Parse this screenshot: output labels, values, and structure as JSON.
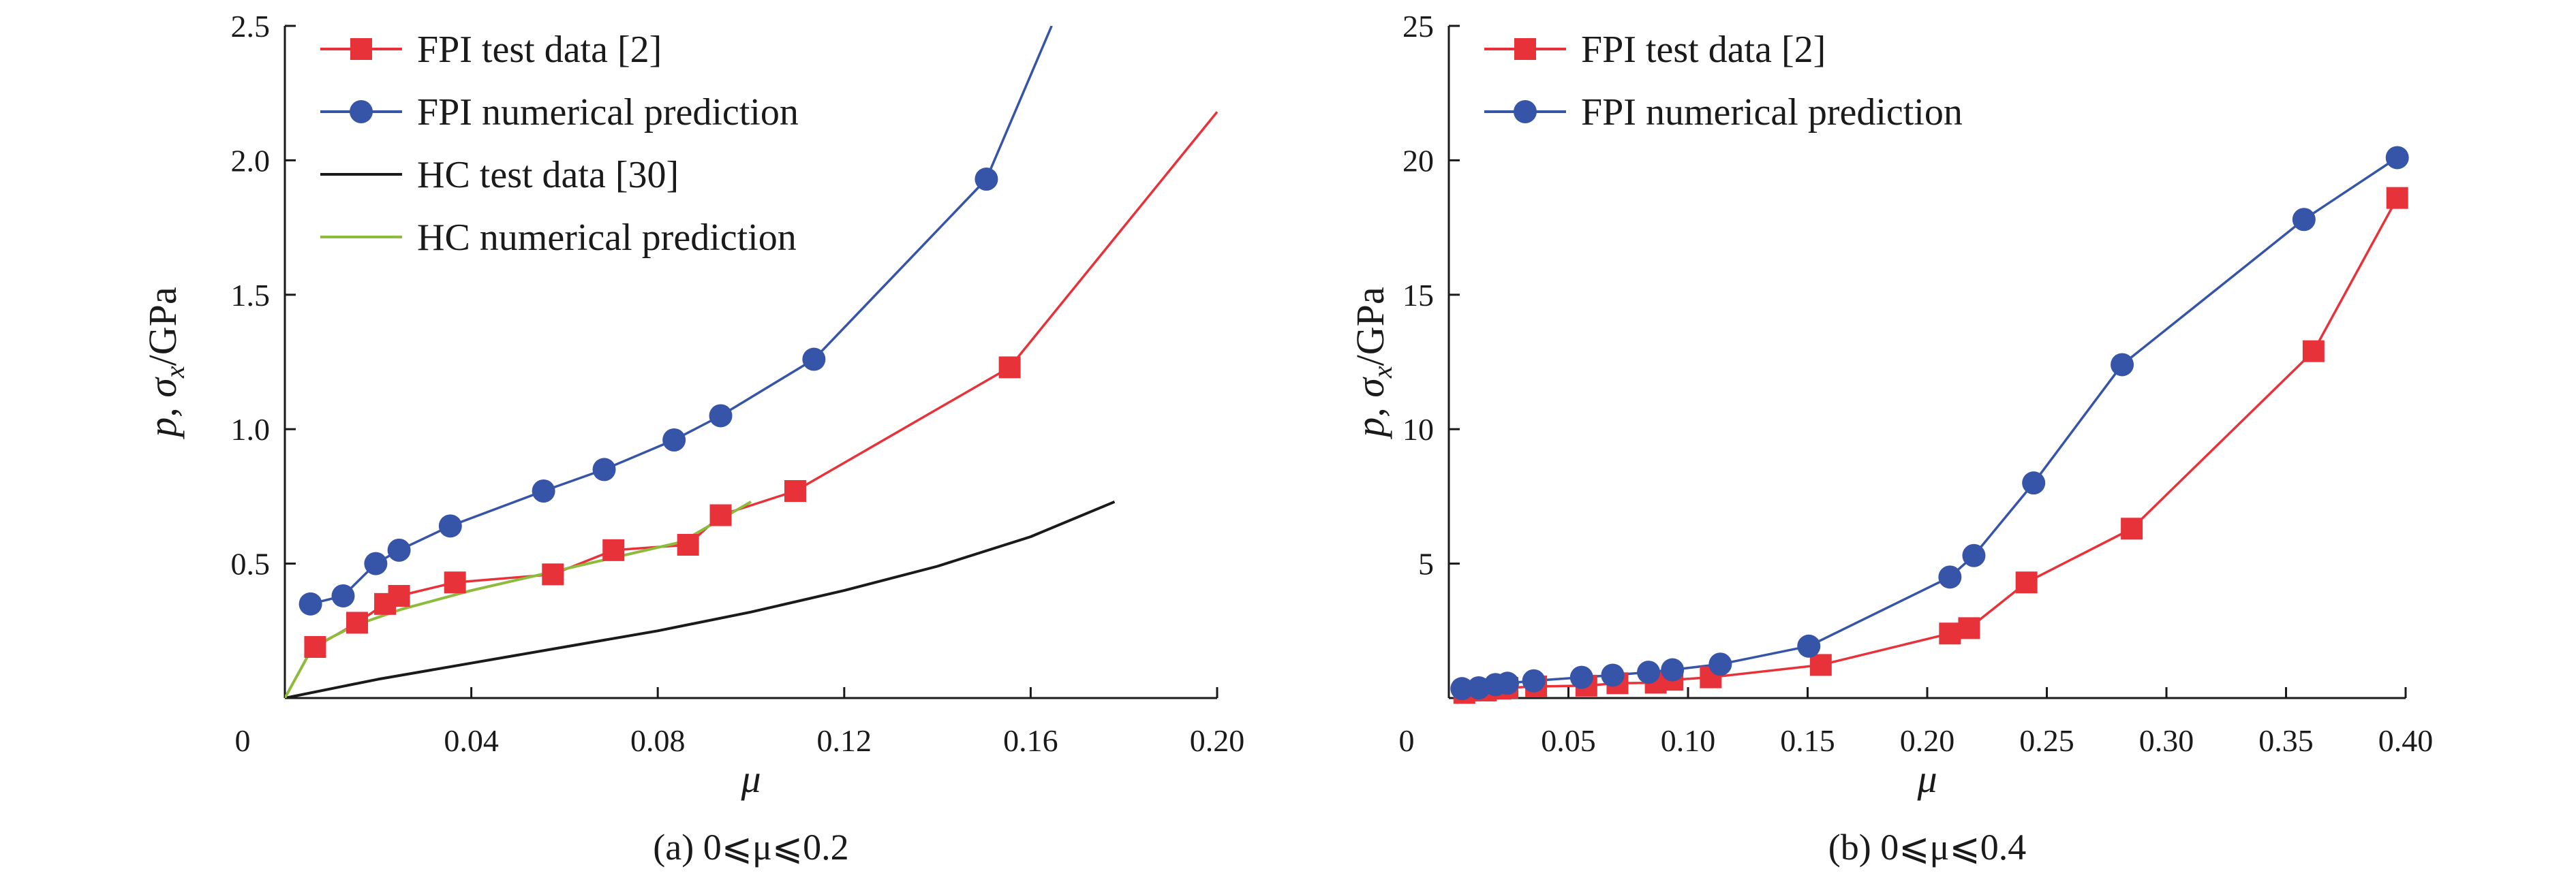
{
  "chart_data": [
    {
      "type": "line",
      "caption": "(a) 0⩽μ⩽0.2",
      "xlabel": "μ",
      "ylabel_parts": [
        "p, ",
        "σ",
        "x",
        "/GPa"
      ],
      "xlim": [
        0,
        0.2
      ],
      "ylim": [
        0,
        2.5
      ],
      "x_ticks": [
        0,
        0.04,
        0.08,
        0.12,
        0.16,
        0.2
      ],
      "x_tick_labels": [
        "0",
        "0.04",
        "0.08",
        "0.12",
        "0.16",
        "0.20"
      ],
      "y_ticks": [
        0.5,
        1.0,
        1.5,
        2.0,
        2.5
      ],
      "y_tick_labels": [
        "0.5",
        "1.0",
        "1.5",
        "2.0",
        "2.5"
      ],
      "legend_position": "top-left",
      "series": [
        {
          "name": "FPI test data [2]",
          "color": "#e8323a",
          "marker": "square",
          "x": [
            0.0065,
            0.0155,
            0.0215,
            0.0245,
            0.0365,
            0.0575,
            0.0705,
            0.0865,
            0.0935,
            0.1095,
            0.1555,
            0.2
          ],
          "y": [
            0.19,
            0.28,
            0.35,
            0.38,
            0.43,
            0.46,
            0.55,
            0.57,
            0.68,
            0.77,
            1.23,
            2.18
          ],
          "marker_count": 11
        },
        {
          "name": "FPI numerical prediction",
          "color": "#3654a8",
          "marker": "circle",
          "x": [
            0.0055,
            0.0125,
            0.0195,
            0.0245,
            0.0355,
            0.0555,
            0.0685,
            0.0835,
            0.0935,
            0.1135,
            0.1505,
            0.1645
          ],
          "y": [
            0.35,
            0.38,
            0.5,
            0.55,
            0.64,
            0.77,
            0.85,
            0.96,
            1.05,
            1.26,
            1.93,
            2.5
          ],
          "marker_count": 11
        },
        {
          "name": "HC test data [30]",
          "color": "#1a1a1a",
          "marker": "none",
          "x": [
            0,
            0.02,
            0.04,
            0.06,
            0.08,
            0.1,
            0.12,
            0.14,
            0.16,
            0.178
          ],
          "y": [
            0,
            0.07,
            0.13,
            0.19,
            0.25,
            0.32,
            0.4,
            0.49,
            0.6,
            0.73
          ]
        },
        {
          "name": "HC numerical prediction",
          "color": "#8dbb3c",
          "marker": "none",
          "x": [
            0,
            0.006,
            0.015,
            0.025,
            0.04,
            0.055,
            0.07,
            0.085,
            0.1
          ],
          "y": [
            0,
            0.19,
            0.27,
            0.33,
            0.4,
            0.46,
            0.52,
            0.58,
            0.73
          ]
        }
      ]
    },
    {
      "type": "line",
      "caption": "(b) 0⩽μ⩽0.4",
      "xlabel": "μ",
      "ylabel_parts": [
        "p, ",
        "σ",
        "x",
        "/GPa"
      ],
      "xlim": [
        0,
        0.4
      ],
      "ylim": [
        0,
        25
      ],
      "x_ticks": [
        0,
        0.05,
        0.1,
        0.15,
        0.2,
        0.25,
        0.3,
        0.35,
        0.4
      ],
      "x_tick_labels": [
        "0",
        "0.05",
        "0.10",
        "0.15",
        "0.20",
        "0.25",
        "0.30",
        "0.35",
        "0.40"
      ],
      "y_ticks": [
        5,
        10,
        15,
        20,
        25
      ],
      "y_tick_labels": [
        "5",
        "10",
        "15",
        "20",
        "25"
      ],
      "legend_position": "top-left",
      "series": [
        {
          "name": "FPI test data [2]",
          "color": "#e8323a",
          "marker": "square",
          "x": [
            0.0065,
            0.0155,
            0.0215,
            0.0245,
            0.0365,
            0.0575,
            0.0705,
            0.0865,
            0.0935,
            0.1095,
            0.1555,
            0.2095,
            0.2175,
            0.2415,
            0.2855,
            0.3615,
            0.3965
          ],
          "y": [
            0.19,
            0.28,
            0.35,
            0.38,
            0.43,
            0.46,
            0.55,
            0.57,
            0.68,
            0.77,
            1.23,
            2.4,
            2.6,
            4.3,
            6.3,
            12.9,
            18.6
          ]
        },
        {
          "name": "FPI numerical prediction",
          "color": "#3654a8",
          "marker": "circle",
          "x": [
            0.0055,
            0.0125,
            0.0195,
            0.0245,
            0.0355,
            0.0555,
            0.0685,
            0.0835,
            0.0935,
            0.1135,
            0.1505,
            0.2095,
            0.2195,
            0.2445,
            0.2815,
            0.3575,
            0.3965
          ],
          "y": [
            0.35,
            0.38,
            0.5,
            0.55,
            0.64,
            0.77,
            0.85,
            0.96,
            1.05,
            1.26,
            1.93,
            4.5,
            5.3,
            8.0,
            12.4,
            17.8,
            20.1
          ]
        }
      ]
    }
  ]
}
